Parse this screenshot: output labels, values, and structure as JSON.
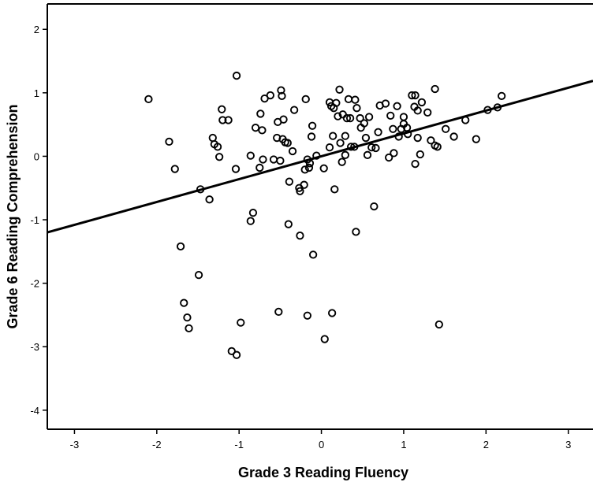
{
  "chart_data": {
    "type": "scatter",
    "xlabel": "Grade 3 Reading Fluency",
    "ylabel": "Grade 6 Reading Comprehension",
    "xlim": [
      -3.33,
      3.3
    ],
    "ylim": [
      -4.3,
      2.4
    ],
    "xticks": [
      -3,
      -2,
      -1,
      0,
      1,
      2,
      3
    ],
    "yticks": [
      -4,
      -3,
      -2,
      -1,
      0,
      1,
      2
    ],
    "grid": false,
    "legend": "none",
    "fit_line": {
      "slope": 0.36,
      "intercept": 0.0
    },
    "series": [
      {
        "points": [
          [
            -2.1,
            0.9
          ],
          [
            -1.85,
            0.23
          ],
          [
            -1.78,
            -0.2
          ],
          [
            -1.71,
            -1.42
          ],
          [
            -1.67,
            -2.31
          ],
          [
            -1.63,
            -2.54
          ],
          [
            -1.61,
            -2.71
          ],
          [
            -1.49,
            -1.87
          ],
          [
            -1.47,
            -0.52
          ],
          [
            -1.36,
            -0.68
          ],
          [
            -1.32,
            0.29
          ],
          [
            -1.3,
            0.19
          ],
          [
            -1.26,
            0.15
          ],
          [
            -1.24,
            -0.01
          ],
          [
            -1.21,
            0.74
          ],
          [
            -1.2,
            0.57
          ],
          [
            -1.13,
            0.57
          ],
          [
            -1.09,
            -3.07
          ],
          [
            -1.03,
            -3.13
          ],
          [
            -1.04,
            -0.2
          ],
          [
            -1.03,
            1.27
          ],
          [
            -0.98,
            -2.62
          ],
          [
            -0.86,
            0.01
          ],
          [
            -0.86,
            -1.02
          ],
          [
            -0.83,
            -0.89
          ],
          [
            -0.8,
            0.45
          ],
          [
            -0.75,
            -0.18
          ],
          [
            -0.74,
            0.67
          ],
          [
            -0.72,
            0.41
          ],
          [
            -0.71,
            -0.05
          ],
          [
            -0.69,
            0.91
          ],
          [
            -0.62,
            0.96
          ],
          [
            -0.58,
            -0.05
          ],
          [
            -0.54,
            0.29
          ],
          [
            -0.53,
            0.54
          ],
          [
            -0.52,
            -2.45
          ],
          [
            -0.5,
            -0.07
          ],
          [
            -0.49,
            1.04
          ],
          [
            -0.48,
            0.95
          ],
          [
            -0.47,
            0.27
          ],
          [
            -0.46,
            0.58
          ],
          [
            -0.44,
            0.22
          ],
          [
            -0.41,
            0.21
          ],
          [
            -0.4,
            -1.07
          ],
          [
            -0.39,
            -0.4
          ],
          [
            -0.35,
            0.08
          ],
          [
            -0.33,
            0.73
          ],
          [
            -0.27,
            -0.5
          ],
          [
            -0.26,
            -0.55
          ],
          [
            -0.26,
            -1.25
          ],
          [
            -0.21,
            -0.45
          ],
          [
            -0.19,
            0.9
          ],
          [
            -0.2,
            -0.21
          ],
          [
            -0.17,
            -0.05
          ],
          [
            -0.17,
            -2.51
          ],
          [
            -0.15,
            -0.18
          ],
          [
            -0.14,
            -0.11
          ],
          [
            -0.12,
            0.31
          ],
          [
            -0.11,
            0.48
          ],
          [
            -0.1,
            -1.55
          ],
          [
            -0.06,
            0.01
          ],
          [
            0.03,
            -0.19
          ],
          [
            0.04,
            -2.88
          ],
          [
            0.1,
            0.14
          ],
          [
            0.1,
            0.85
          ],
          [
            0.12,
            0.79
          ],
          [
            0.13,
            -2.47
          ],
          [
            0.14,
            0.32
          ],
          [
            0.15,
            0.76
          ],
          [
            0.16,
            -0.52
          ],
          [
            0.18,
            0.84
          ],
          [
            0.2,
            0.63
          ],
          [
            0.22,
            1.05
          ],
          [
            0.23,
            0.21
          ],
          [
            0.25,
            -0.09
          ],
          [
            0.26,
            0.66
          ],
          [
            0.29,
            0.32
          ],
          [
            0.29,
            0.02
          ],
          [
            0.31,
            0.6
          ],
          [
            0.33,
            0.9
          ],
          [
            0.35,
            0.6
          ],
          [
            0.36,
            0.15
          ],
          [
            0.4,
            0.15
          ],
          [
            0.41,
            0.89
          ],
          [
            0.42,
            -1.19
          ],
          [
            0.43,
            0.76
          ],
          [
            0.47,
            0.6
          ],
          [
            0.48,
            0.45
          ],
          [
            0.52,
            0.52
          ],
          [
            0.54,
            0.29
          ],
          [
            0.56,
            0.02
          ],
          [
            0.58,
            0.62
          ],
          [
            0.61,
            0.14
          ],
          [
            0.64,
            -0.79
          ],
          [
            0.66,
            0.13
          ],
          [
            0.69,
            0.38
          ],
          [
            0.71,
            0.8
          ],
          [
            0.78,
            0.83
          ],
          [
            0.82,
            -0.02
          ],
          [
            0.84,
            0.64
          ],
          [
            0.87,
            0.43
          ],
          [
            0.88,
            0.05
          ],
          [
            0.92,
            0.79
          ],
          [
            0.94,
            0.31
          ],
          [
            0.97,
            0.43
          ],
          [
            1.0,
            0.51
          ],
          [
            1.0,
            0.62
          ],
          [
            1.04,
            0.45
          ],
          [
            1.05,
            0.35
          ],
          [
            1.1,
            0.96
          ],
          [
            1.13,
            0.78
          ],
          [
            1.14,
            0.96
          ],
          [
            1.14,
            -0.12
          ],
          [
            1.17,
            0.72
          ],
          [
            1.17,
            0.29
          ],
          [
            1.2,
            0.03
          ],
          [
            1.22,
            0.85
          ],
          [
            1.29,
            0.69
          ],
          [
            1.33,
            0.25
          ],
          [
            1.38,
            0.17
          ],
          [
            1.38,
            1.06
          ],
          [
            1.41,
            0.15
          ],
          [
            1.43,
            -2.65
          ],
          [
            1.51,
            0.43
          ],
          [
            1.61,
            0.31
          ],
          [
            1.75,
            0.57
          ],
          [
            1.88,
            0.27
          ],
          [
            2.02,
            0.73
          ],
          [
            2.14,
            0.77
          ],
          [
            2.19,
            0.95
          ]
        ]
      }
    ]
  }
}
